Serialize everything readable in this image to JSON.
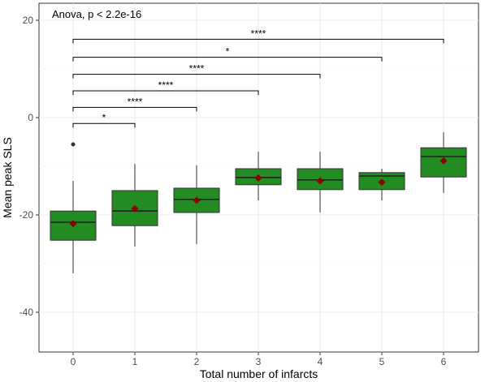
{
  "chart_data": {
    "type": "box",
    "xlabel": "Total number of infarcts",
    "ylabel": "Mean peak SLS",
    "annotation": "Anova, p < 2.2e-16",
    "categories": [
      "0",
      "1",
      "2",
      "3",
      "4",
      "5",
      "6"
    ],
    "ylim": [
      -49,
      24
    ],
    "yticks": [
      -40,
      -20,
      0,
      20
    ],
    "grid": true,
    "box_color": "#228b22",
    "mean_color": "#8b0000",
    "boxes": [
      {
        "category": "0",
        "whisker_low": -32,
        "q1": -25.2,
        "median": -21.5,
        "q3": -19.2,
        "whisker_high": -13,
        "mean": -21.8,
        "outliers": [
          -5.5
        ]
      },
      {
        "category": "1",
        "whisker_low": -26.5,
        "q1": -22.2,
        "median": -19.2,
        "q3": -15,
        "whisker_high": -9.5,
        "mean": -18.7,
        "outliers": []
      },
      {
        "category": "2",
        "whisker_low": -26,
        "q1": -19.5,
        "median": -16.8,
        "q3": -14.5,
        "whisker_high": -9.8,
        "mean": -17,
        "outliers": []
      },
      {
        "category": "3",
        "whisker_low": -17,
        "q1": -13.8,
        "median": -12.3,
        "q3": -10.5,
        "whisker_high": -7,
        "mean": -12.4,
        "outliers": []
      },
      {
        "category": "4",
        "whisker_low": -19.5,
        "q1": -14.8,
        "median": -12.8,
        "q3": -10.5,
        "whisker_high": -7,
        "mean": -13,
        "outliers": []
      },
      {
        "category": "5",
        "whisker_low": -17,
        "q1": -14.8,
        "median": -12,
        "q3": -11.3,
        "whisker_high": -10.5,
        "mean": -13.3,
        "outliers": []
      },
      {
        "category": "6",
        "whisker_low": -15.5,
        "q1": -12.2,
        "median": -8,
        "q3": -6.2,
        "whisker_high": -3,
        "mean": -8.9,
        "outliers": []
      }
    ],
    "comparisons": [
      {
        "from": "0",
        "to": "1",
        "y": -1.2,
        "label": "*"
      },
      {
        "from": "0",
        "to": "2",
        "y": 2.1,
        "label": "****"
      },
      {
        "from": "0",
        "to": "3",
        "y": 5.5,
        "label": "****"
      },
      {
        "from": "0",
        "to": "4",
        "y": 8.9,
        "label": "****"
      },
      {
        "from": "0",
        "to": "5",
        "y": 12.4,
        "label": "*"
      },
      {
        "from": "0",
        "to": "6",
        "y": 16.1,
        "label": "****"
      }
    ]
  }
}
